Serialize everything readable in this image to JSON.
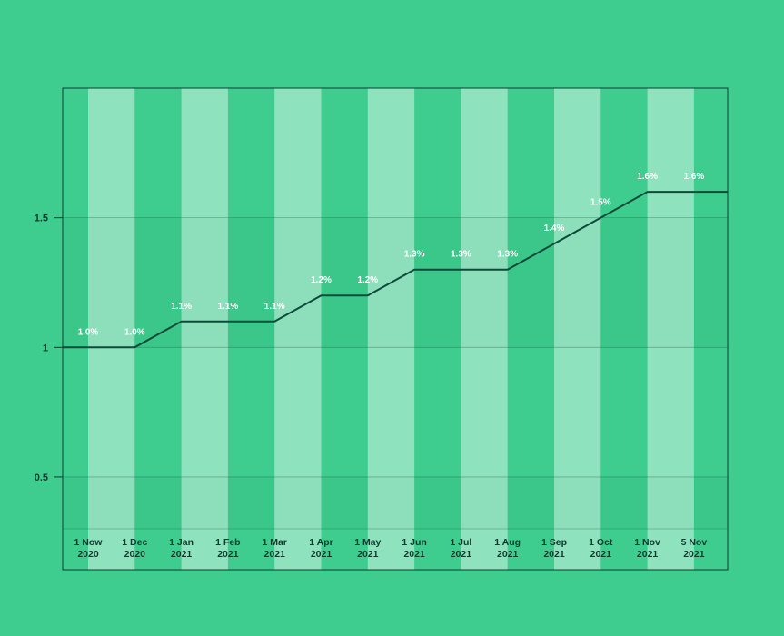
{
  "chart_data": {
    "type": "line",
    "title": "",
    "xlabel": "",
    "ylabel": "",
    "categories": [
      [
        "1 Now",
        "2020"
      ],
      [
        "1 Dec",
        "2020"
      ],
      [
        "1 Jan",
        "2021"
      ],
      [
        "1 Feb",
        "2021"
      ],
      [
        "1 Mar",
        "2021"
      ],
      [
        "1 Apr",
        "2021"
      ],
      [
        "1 May",
        "2021"
      ],
      [
        "1 Jun",
        "2021"
      ],
      [
        "1 Jul",
        "2021"
      ],
      [
        "1 Aug",
        "2021"
      ],
      [
        "1 Sep",
        "2021"
      ],
      [
        "1 Oct",
        "2021"
      ],
      [
        "1 Nov",
        "2021"
      ],
      [
        "5 Nov",
        "2021"
      ]
    ],
    "values": [
      1.0,
      1.0,
      1.1,
      1.1,
      1.1,
      1.2,
      1.2,
      1.3,
      1.3,
      1.3,
      1.4,
      1.5,
      1.6,
      1.6
    ],
    "data_labels": [
      "1.0%",
      "1.0%",
      "1.1%",
      "1.1%",
      "1.1%",
      "1.2%",
      "1.2%",
      "1.3%",
      "1.3%",
      "1.3%",
      "1.4%",
      "1.5%",
      "1.6%",
      "1.6%"
    ],
    "y_ticks": [
      {
        "value": 0.5,
        "label": "0.5"
      },
      {
        "value": 1,
        "label": "1"
      },
      {
        "value": 1.5,
        "label": "1.5"
      }
    ],
    "ylim": [
      0.3,
      2.0
    ],
    "grid": true,
    "legend": "none"
  },
  "colors": {
    "background": "#3ecd8f",
    "line": "#0c4a3a",
    "axis_text": "#0d3b2e",
    "value_label": "#ffffff"
  }
}
